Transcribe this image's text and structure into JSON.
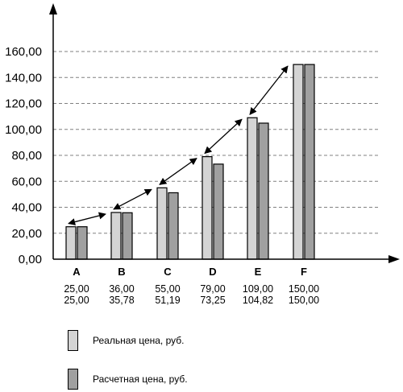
{
  "chart_data": {
    "type": "bar",
    "categories": [
      "A",
      "B",
      "C",
      "D",
      "E",
      "F"
    ],
    "series": [
      {
        "name": "Реальная цена, руб.",
        "color": "#d4d4d4",
        "values": [
          25.0,
          36.0,
          55.0,
          79.0,
          109.0,
          150.0
        ]
      },
      {
        "name": "Расчетная цена, руб.",
        "color": "#a0a0a0",
        "values": [
          25.0,
          35.78,
          51.19,
          73.25,
          104.82,
          150.0
        ]
      }
    ],
    "value_labels": [
      [
        "25,00",
        "25,00"
      ],
      [
        "36,00",
        "35,78"
      ],
      [
        "55,00",
        "51,19"
      ],
      [
        "79,00",
        "73,25"
      ],
      [
        "109,00",
        "104,82"
      ],
      [
        "150,00",
        "150,00"
      ]
    ],
    "y_ticks": [
      0,
      20,
      40,
      60,
      80,
      100,
      120,
      140,
      160
    ],
    "y_tick_labels": [
      "0,00",
      "20,00",
      "40,00",
      "60,00",
      "80,00",
      "100,00",
      "120,00",
      "140,00",
      "160,00"
    ],
    "ylim": [
      0,
      160
    ],
    "grid": "dashed-horizontal",
    "legend_position": "bottom-left",
    "annotations": "double-headed arrows linking consecutive categories",
    "title": "",
    "xlabel": "",
    "ylabel": ""
  }
}
